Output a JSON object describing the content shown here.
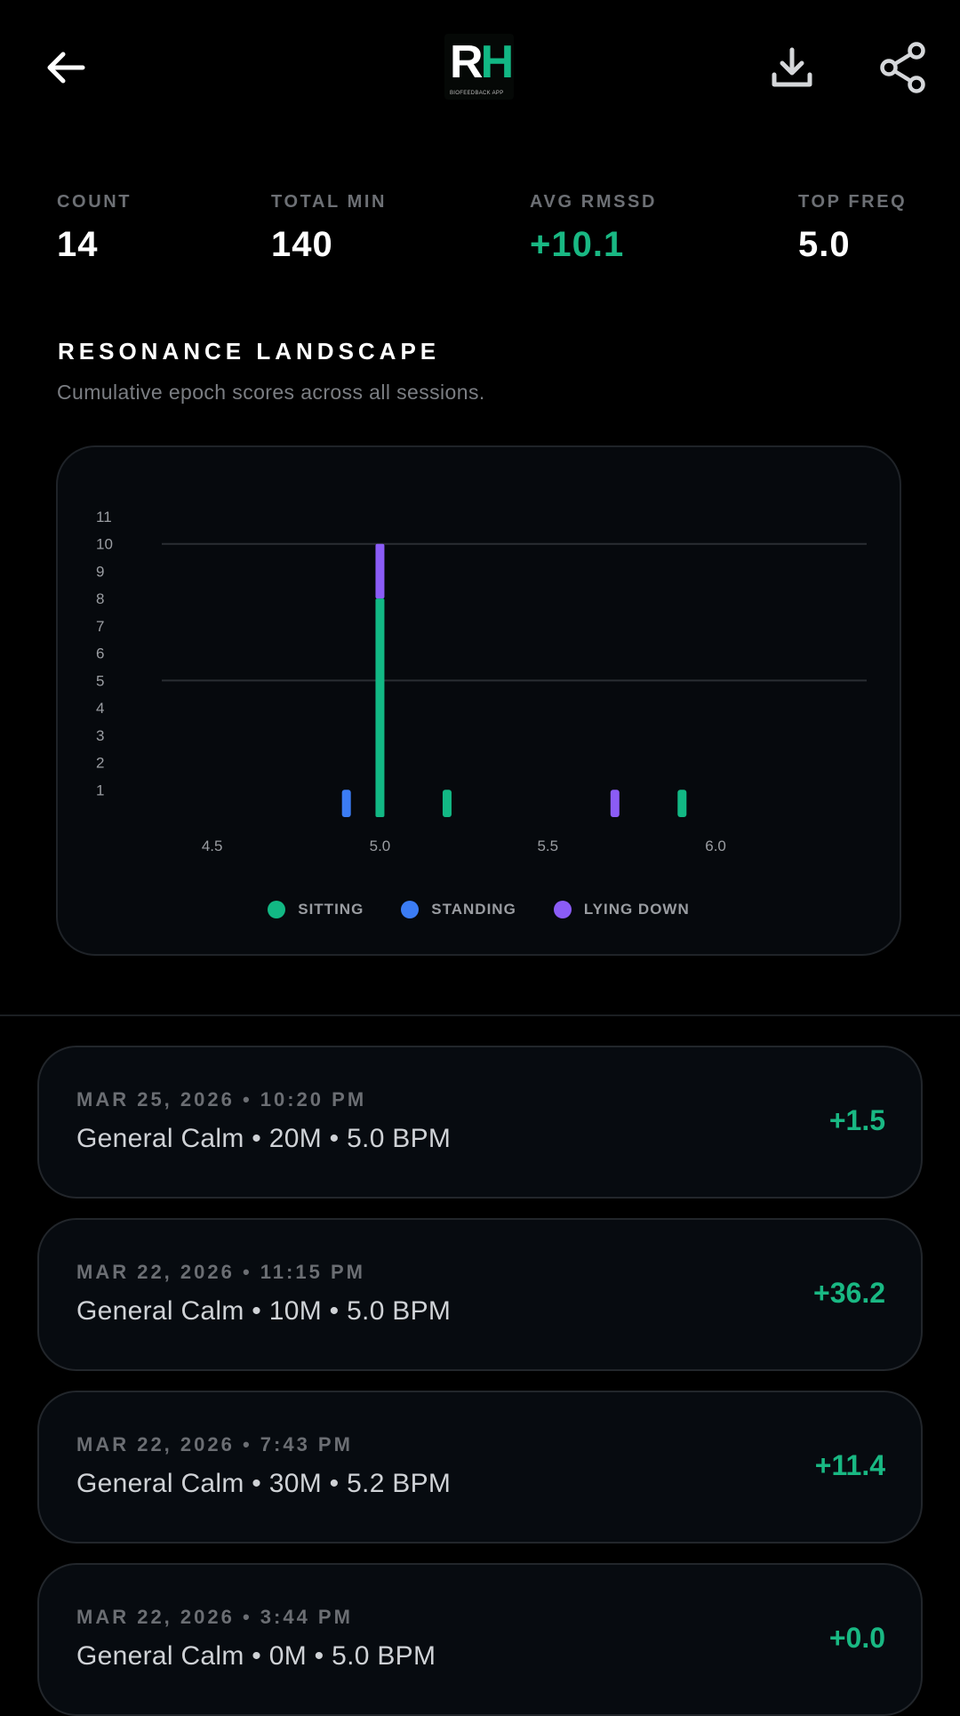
{
  "header": {
    "back_icon": "arrow-left-icon",
    "logo_text_r": "R",
    "logo_text_h": "H",
    "logo_tagline": "BIOFEEDBACK APP",
    "download_icon": "download-icon",
    "share_icon": "share-icon"
  },
  "stats": [
    {
      "label": "COUNT",
      "value": "14"
    },
    {
      "label": "TOTAL MIN",
      "value": "140"
    },
    {
      "label": "AVG RMSSD",
      "value": "+10.1"
    },
    {
      "label": "TOP FREQ",
      "value": "5.0"
    }
  ],
  "section": {
    "title": "RESONANCE LANDSCAPE",
    "subtitle": "Cumulative epoch scores across all sessions."
  },
  "colors": {
    "sitting": "#12b884",
    "standing": "#3b7cf4",
    "lying": "#8b5cf6",
    "accent_green": "#19b883"
  },
  "chart_data": {
    "type": "bar",
    "stacked": true,
    "x_ticks": [
      "4.5",
      "5.0",
      "5.5",
      "6.0"
    ],
    "xlim": [
      4.35,
      6.45
    ],
    "y_ticks": [
      "1",
      "2",
      "3",
      "4",
      "5",
      "6",
      "7",
      "8",
      "9",
      "10",
      "11"
    ],
    "ylim": [
      0,
      11
    ],
    "gridlines_at": [
      5,
      10
    ],
    "series": [
      {
        "name": "SITTING",
        "points": [
          {
            "x": 5.0,
            "y": 8
          },
          {
            "x": 5.2,
            "y": 1
          },
          {
            "x": 5.9,
            "y": 1
          }
        ]
      },
      {
        "name": "STANDING",
        "points": [
          {
            "x": 4.9,
            "y": 1
          }
        ]
      },
      {
        "name": "LYING DOWN",
        "points": [
          {
            "x": 5.0,
            "y": 2
          },
          {
            "x": 5.7,
            "y": 1
          }
        ]
      }
    ],
    "legend_position": "bottom-center"
  },
  "sessions": [
    {
      "date": "MAR 25, 2026 • 10:20 PM",
      "desc": "General Calm • 20M • 5.0 BPM",
      "delta": "+1.5"
    },
    {
      "date": "MAR 22, 2026 • 11:15 PM",
      "desc": "General Calm • 10M • 5.0 BPM",
      "delta": "+36.2"
    },
    {
      "date": "MAR 22, 2026 • 7:43 PM",
      "desc": "General Calm • 30M • 5.2 BPM",
      "delta": "+11.4"
    },
    {
      "date": "MAR 22, 2026 • 3:44 PM",
      "desc": "General Calm • 0M • 5.0 BPM",
      "delta": "+0.0"
    }
  ]
}
